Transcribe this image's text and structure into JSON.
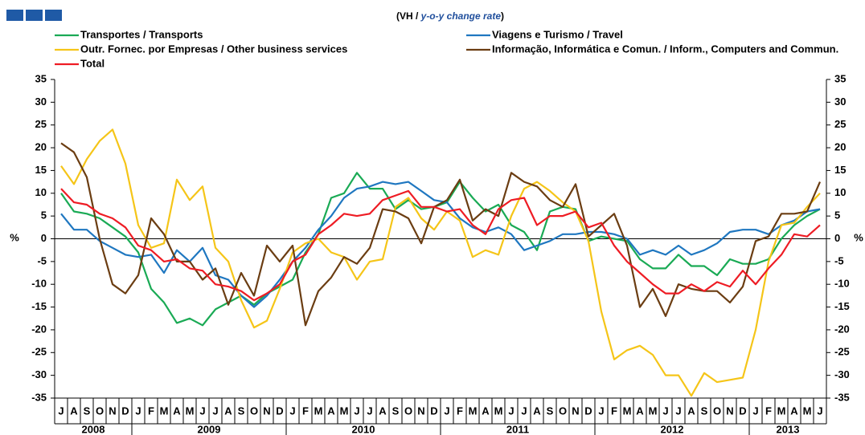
{
  "chart_data": {
    "type": "line",
    "subtitle": [
      "(VH / ",
      "y-o-y change rate",
      ")"
    ],
    "ylabel": "%",
    "y2label": "%",
    "categories": [
      "J",
      "A",
      "S",
      "O",
      "N",
      "D",
      "J",
      "F",
      "M",
      "A",
      "M",
      "J",
      "J",
      "A",
      "S",
      "O",
      "N",
      "D",
      "J",
      "F",
      "M",
      "A",
      "M",
      "J",
      "J",
      "A",
      "S",
      "O",
      "N",
      "D",
      "J",
      "F",
      "M",
      "A",
      "M",
      "J",
      "J",
      "A",
      "S",
      "O",
      "N",
      "D",
      "J",
      "F",
      "M",
      "A",
      "M",
      "J",
      "J",
      "A",
      "S",
      "O",
      "N",
      "D",
      "J",
      "F",
      "M",
      "A",
      "M",
      "J"
    ],
    "years": [
      "2008",
      "2009",
      "2010",
      "2011",
      "2012",
      "2013"
    ],
    "ylim": [
      -35,
      35
    ],
    "yticks": [
      -35,
      -30,
      -25,
      -20,
      -15,
      -10,
      -5,
      0,
      5,
      10,
      15,
      20,
      25,
      30,
      35
    ],
    "y2lim": [
      -35,
      35
    ],
    "y2ticks": [
      -35,
      -30,
      -25,
      -20,
      -15,
      -10,
      -5,
      0,
      5,
      10,
      15,
      20,
      25,
      30,
      35
    ],
    "grid": false,
    "series": [
      {
        "name": "Transportes / Transports",
        "color": "#1aaa55",
        "values": [
          10,
          6,
          5.5,
          4.5,
          2.5,
          0.5,
          -3,
          -11,
          -14,
          -18.5,
          -17.5,
          -19,
          -15.5,
          -14,
          -12.5,
          -14.5,
          -12,
          -10.5,
          -9,
          -3,
          1,
          9,
          10,
          14.5,
          11,
          11,
          6.5,
          8.5,
          6.5,
          7,
          8,
          12.5,
          9,
          6,
          7.5,
          3,
          1.5,
          -2.5,
          6,
          7,
          6.5,
          -0.5,
          0.5,
          0,
          -0.5,
          -4.5,
          -6.5,
          -6.5,
          -3.5,
          -6,
          -6,
          -8,
          -4.5,
          -5.5,
          -5.5,
          -4.5,
          0,
          3,
          5,
          6.5
        ]
      },
      {
        "name": "Viagens e Turismo / Travel",
        "color": "#1f77c0",
        "values": [
          5.5,
          2,
          2,
          -0.5,
          -2,
          -3.5,
          -4,
          -3.5,
          -7.5,
          -2.5,
          -5,
          -2,
          -8,
          -9,
          -12.5,
          -15,
          -12.5,
          -9,
          -5,
          -2,
          2,
          5,
          9,
          11,
          11.5,
          12.5,
          12,
          12.5,
          10.5,
          8.5,
          8,
          4.5,
          2.5,
          1.5,
          2.5,
          1,
          -2.5,
          -1.5,
          -0.5,
          1,
          1,
          1.5,
          1.5,
          1,
          0,
          -3.5,
          -2.5,
          -3.5,
          -1.5,
          -3.5,
          -2.5,
          -1,
          1.5,
          2,
          2,
          1,
          3,
          4,
          6,
          6.5
        ]
      },
      {
        "name": "Outr. Fornec. por Empresas / Other business services",
        "color": "#f5c518",
        "values": [
          16,
          12,
          17.5,
          21.5,
          24,
          16.5,
          3,
          -2,
          -1,
          13,
          8.5,
          11.5,
          -2,
          -5,
          -13.5,
          -19.5,
          -18,
          -11,
          -3,
          -1,
          0,
          -3,
          -4,
          -9,
          -5,
          -4.5,
          7,
          9,
          4.5,
          2,
          6,
          4,
          -4,
          -2.5,
          -3.5,
          5,
          11,
          12.5,
          10.5,
          8,
          6,
          -0.5,
          -16,
          -26.5,
          -24.5,
          -23.5,
          -25.5,
          -30,
          -30,
          -34.5,
          -29.5,
          -31.5,
          -31,
          -30.5,
          -20,
          -5,
          3,
          3.5,
          7,
          10
        ]
      },
      {
        "name": "Informação, Informática e Comun. / Inform., Computers and Commun.",
        "color": "#6b3d12",
        "values": [
          21,
          19,
          13.5,
          0,
          -10,
          -12,
          -8,
          4.5,
          1,
          -5,
          -5,
          -9,
          -6.5,
          -14.5,
          -7.5,
          -12.5,
          -1.5,
          -5,
          -1.5,
          -19,
          -11.5,
          -8.5,
          -4,
          -5.5,
          -2,
          6.5,
          6,
          4.5,
          -1,
          7,
          8.5,
          13,
          4,
          6.5,
          5,
          14.5,
          12.5,
          11.5,
          8.5,
          7,
          12,
          0.5,
          3,
          5.5,
          -1.5,
          -15,
          -11,
          -17,
          -10,
          -11,
          -11.5,
          -11.5,
          -14,
          -10.5,
          -0.5,
          0.5,
          5.5,
          5.5,
          6,
          12.5
        ]
      },
      {
        "name": "Total",
        "color": "#ee1c24",
        "values": [
          11,
          8,
          7.5,
          5.5,
          4.5,
          2.5,
          -1.5,
          -2.5,
          -5,
          -4.5,
          -6.5,
          -7,
          -10,
          -10.5,
          -11.5,
          -13.5,
          -12,
          -10,
          -5,
          -3.5,
          1,
          3,
          5.5,
          5,
          5.5,
          8.5,
          9.5,
          10.5,
          7,
          7,
          6,
          6.5,
          3,
          1,
          6.5,
          8.5,
          9,
          3,
          5,
          5,
          6,
          2.5,
          3.5,
          -1.5,
          -5,
          -7.5,
          -10,
          -12,
          -12,
          -10,
          -11.5,
          -9.5,
          -10.5,
          -7,
          -10,
          -6.5,
          -3.5,
          1,
          0.5,
          3
        ]
      }
    ]
  }
}
